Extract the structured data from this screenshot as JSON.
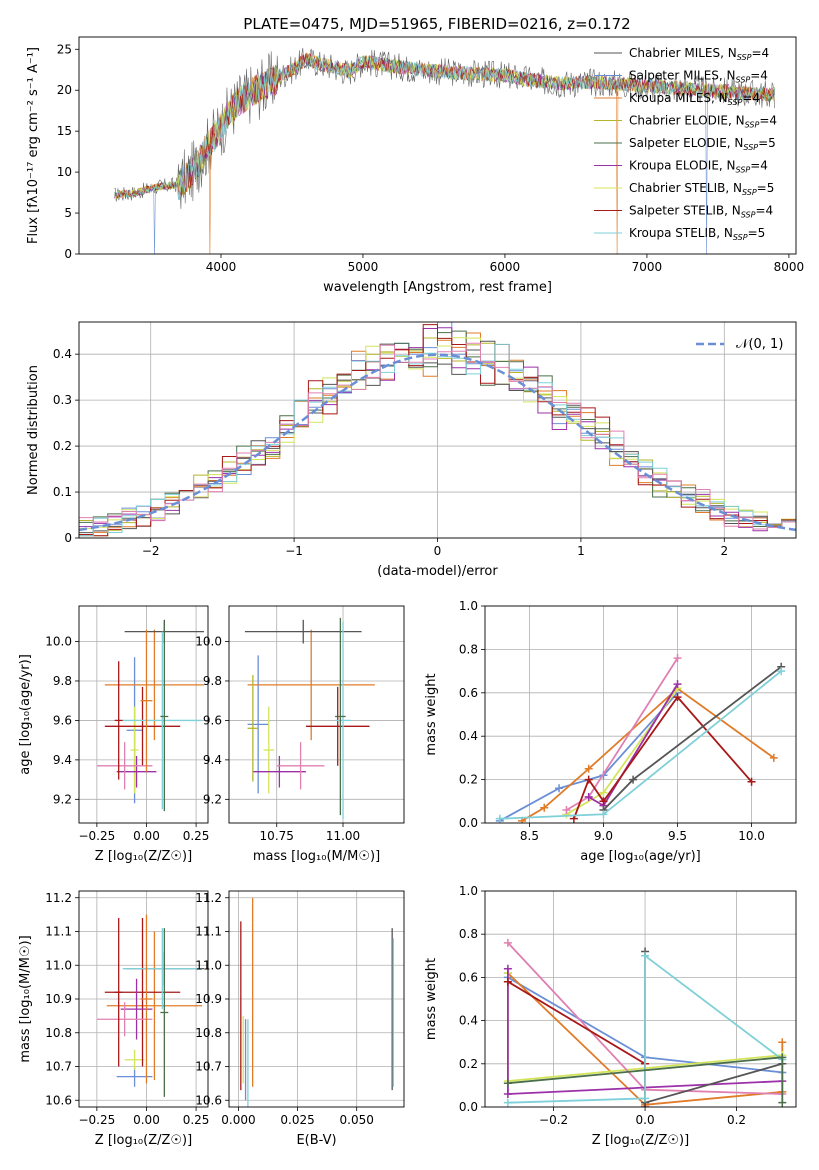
{
  "figure": {
    "title": "PLATE=0475, MJD=51965, FIBERID=0216, z=0.172"
  },
  "colors": [
    "#6a8fd6",
    "#e07b28",
    "#b5b52a",
    "#4a6f4a",
    "#9b30a8",
    "#d4e45a",
    "#555555",
    "#a81818",
    "#7fd0d8",
    "#e080b0"
  ],
  "chart_data": [
    {
      "id": "spectrum",
      "type": "line",
      "title": "PLATE=0475, MJD=51965, FIBERID=0216, z=0.172",
      "xlabel": "wavelength [Angstrom, rest frame]",
      "ylabel": "Flux [fλ10⁻¹⁷ erg cm⁻² s⁻¹ A⁻¹]",
      "xlim": [
        3000,
        8050
      ],
      "ylim": [
        0,
        26.5
      ],
      "xticks": [
        4000,
        5000,
        6000,
        7000,
        8000
      ],
      "yticks": [
        0,
        5,
        10,
        15,
        20,
        25
      ],
      "legend_position": "top-right",
      "grid": false,
      "x": [
        3250,
        3400,
        3550,
        3700,
        3800,
        3900,
        4000,
        4100,
        4200,
        4300,
        4400,
        4500,
        4600,
        4700,
        4800,
        4900,
        5000,
        5200,
        5400,
        5600,
        5800,
        6000,
        6200,
        6400,
        6600,
        6800,
        7000,
        7200,
        7400,
        7600,
        7800
      ],
      "y": [
        7.2,
        7.5,
        8.2,
        8.5,
        10,
        13,
        15.5,
        18.2,
        19.5,
        20.5,
        21.5,
        22.5,
        23.8,
        23.2,
        22.8,
        22.2,
        23.5,
        23,
        22.5,
        22.2,
        22,
        21.8,
        21.2,
        20.8,
        21,
        20.8,
        20.5,
        20.3,
        20,
        19.8,
        19.5
      ],
      "series": [
        {
          "name": "Chabrier MILES, N_SSP=4",
          "ssp": "4"
        },
        {
          "name": "Salpeter MILES, N_SSP=4",
          "ssp": "4"
        },
        {
          "name": "Kroupa MILES, N_SSP=4",
          "ssp": "4"
        },
        {
          "name": "Chabrier ELODIE, N_SSP=4",
          "ssp": "4"
        },
        {
          "name": "Salpeter ELODIE, N_SSP=5",
          "ssp": "5"
        },
        {
          "name": "Kroupa ELODIE, N_SSP=4",
          "ssp": "4"
        },
        {
          "name": "Chabrier STELIB, N_SSP=5",
          "ssp": "5"
        },
        {
          "name": "Salpeter STELIB, N_SSP=4",
          "ssp": "4"
        },
        {
          "name": "Kroupa STELIB, N_SSP=5",
          "ssp": "5"
        }
      ],
      "dips": [
        {
          "x": 3530,
          "series": 1
        },
        {
          "x": 3920,
          "series": 2
        },
        {
          "x": 6790,
          "series": 2
        },
        {
          "x": 7420,
          "series": 1
        }
      ]
    },
    {
      "id": "residuals",
      "type": "line",
      "xlabel": "(data-model)/error",
      "ylabel": "Normed distribution",
      "xlim": [
        -2.5,
        2.5
      ],
      "ylim": [
        0,
        0.47
      ],
      "xticks": [
        -2,
        -1,
        0,
        1,
        2
      ],
      "yticks": [
        0,
        0.1,
        0.2,
        0.3,
        0.4
      ],
      "grid": true,
      "legend_position": "top-right",
      "legend": "𝒩(0, 1)",
      "bin_width": 0.1
    },
    {
      "id": "age-vs-Z",
      "type": "scatter",
      "xlabel": "Z [log₁₀(Z/Z☉)]",
      "ylabel": "age  [log₁₀(age/yr)]",
      "xlim": [
        -0.34,
        0.31
      ],
      "ylim": [
        9.08,
        10.18
      ],
      "xticks": [
        -0.25,
        0.0,
        0.25
      ],
      "xticklabels": [
        "−0.25",
        "0.00",
        "0.25"
      ],
      "yticks": [
        9.2,
        9.4,
        9.6,
        9.8,
        10.0
      ],
      "yticklabels": [
        "9.2",
        "9.4",
        "9.6",
        "9.8",
        "10.0"
      ],
      "grid": true,
      "points": [
        {
          "x": -0.06,
          "y": 9.55,
          "xe": 0.04,
          "ye": 0.37,
          "c": 0
        },
        {
          "x": 0.04,
          "y": 9.78,
          "xe": 0.25,
          "ye": 0.28,
          "c": 1
        },
        {
          "x": -0.06,
          "y": 9.45,
          "xe": 0.02,
          "ye": 0.22,
          "c": 5
        },
        {
          "x": 0.09,
          "y": 10.05,
          "xe": 0.2,
          "ye": 0.06,
          "c": 6
        },
        {
          "x": -0.02,
          "y": 9.57,
          "xe": 0.19,
          "ye": 0.2,
          "c": 7
        },
        {
          "x": 0.08,
          "y": 9.6,
          "xe": 0.2,
          "ye": 0.45,
          "c": 8
        },
        {
          "x": -0.05,
          "y": 9.34,
          "xe": 0.1,
          "ye": 0.08,
          "c": 4
        },
        {
          "x": -0.11,
          "y": 9.37,
          "xe": 0.14,
          "ye": 0.12,
          "c": 9
        },
        {
          "x": -0.14,
          "y": 9.6,
          "xe": 0.02,
          "ye": 0.3,
          "c": 7
        },
        {
          "x": 0.0,
          "y": 9.7,
          "xe": 0.03,
          "ye": 0.36,
          "c": 1
        },
        {
          "x": 0.09,
          "y": 9.62,
          "xe": 0.02,
          "ye": 0.48,
          "c": 3
        }
      ]
    },
    {
      "id": "age-vs-mass",
      "type": "scatter",
      "xlabel": "mass [log₁₀(M/M☉)]",
      "xlim": [
        10.57,
        11.23
      ],
      "ylim": [
        9.08,
        10.18
      ],
      "xticks": [
        10.75,
        11.0
      ],
      "xticklabels": [
        "10.75",
        "11.00"
      ],
      "yticks": [
        9.2,
        9.4,
        9.6,
        9.8,
        10.0
      ],
      "yticklabels": [
        "9.2",
        "9.4",
        "9.6",
        "9.8",
        "10.0"
      ],
      "grid": true,
      "points": [
        {
          "x": 10.68,
          "y": 9.58,
          "xe": 0.04,
          "ye": 0.35,
          "c": 0
        },
        {
          "x": 10.88,
          "y": 9.78,
          "xe": 0.24,
          "ye": 0.28,
          "c": 1
        },
        {
          "x": 10.72,
          "y": 9.45,
          "xe": 0.02,
          "ye": 0.22,
          "c": 5
        },
        {
          "x": 10.85,
          "y": 10.05,
          "xe": 0.22,
          "ye": 0.06,
          "c": 6
        },
        {
          "x": 10.98,
          "y": 9.57,
          "xe": 0.12,
          "ye": 0.2,
          "c": 7
        },
        {
          "x": 11.0,
          "y": 9.6,
          "xe": 0.03,
          "ye": 0.5,
          "c": 8
        },
        {
          "x": 10.76,
          "y": 9.34,
          "xe": 0.1,
          "ye": 0.08,
          "c": 4
        },
        {
          "x": 10.84,
          "y": 9.37,
          "xe": 0.09,
          "ye": 0.12,
          "c": 9
        },
        {
          "x": 10.66,
          "y": 9.56,
          "xe": 0.02,
          "ye": 0.27,
          "c": 2
        },
        {
          "x": 10.99,
          "y": 9.62,
          "xe": 0.02,
          "ye": 0.5,
          "c": 3
        }
      ]
    },
    {
      "id": "weight-vs-age",
      "type": "line",
      "xlabel": "age  [log₁₀(age/yr)]",
      "ylabel": "mass weight",
      "xlim": [
        8.2,
        10.3
      ],
      "ylim": [
        0,
        1.0
      ],
      "xticks": [
        8.5,
        9.0,
        9.5,
        10.0
      ],
      "xticklabels": [
        "8.5",
        "9.0",
        "9.5",
        "10.0"
      ],
      "yticks": [
        0,
        0.2,
        0.4,
        0.6,
        0.8,
        1.0
      ],
      "yticklabels": [
        "0.0",
        "0.2",
        "0.4",
        "0.6",
        "0.8",
        "1.0"
      ],
      "grid": true,
      "series": [
        {
          "c": 0,
          "x": [
            8.3,
            8.7,
            9.0,
            9.5
          ],
          "y": [
            0.01,
            0.16,
            0.22,
            0.6
          ]
        },
        {
          "c": 1,
          "x": [
            8.45,
            8.6,
            8.9,
            9.5,
            10.15
          ],
          "y": [
            0.01,
            0.07,
            0.25,
            0.62,
            0.3
          ]
        },
        {
          "c": 5,
          "x": [
            8.75,
            9.0,
            9.5
          ],
          "y": [
            0.04,
            0.14,
            0.62
          ]
        },
        {
          "c": 9,
          "x": [
            8.75,
            8.9,
            9.5
          ],
          "y": [
            0.06,
            0.12,
            0.76
          ]
        },
        {
          "c": 4,
          "x": [
            8.9,
            9.0,
            9.5
          ],
          "y": [
            0.12,
            0.08,
            0.64
          ]
        },
        {
          "c": 7,
          "x": [
            8.8,
            8.9,
            9.0,
            9.5,
            10.0
          ],
          "y": [
            0.02,
            0.2,
            0.1,
            0.58,
            0.19
          ]
        },
        {
          "c": 6,
          "x": [
            9.0,
            9.2,
            10.2
          ],
          "y": [
            0.06,
            0.2,
            0.72
          ]
        },
        {
          "c": 8,
          "x": [
            8.3,
            9.0,
            10.2
          ],
          "y": [
            0.02,
            0.04,
            0.7
          ]
        }
      ]
    },
    {
      "id": "mass-vs-Z",
      "type": "scatter",
      "xlabel": "Z [log₁₀(Z/Z☉)]",
      "ylabel": "mass [log₁₀(M/M☉)]",
      "xlim": [
        -0.34,
        0.31
      ],
      "ylim": [
        10.58,
        11.22
      ],
      "xticks": [
        -0.25,
        0.0,
        0.25
      ],
      "xticklabels": [
        "−0.25",
        "0.00",
        "0.25"
      ],
      "yticks": [
        10.6,
        10.7,
        10.8,
        10.9,
        11.0,
        11.1,
        11.2
      ],
      "yticklabels": [
        "10.6",
        "10.7",
        "10.8",
        "10.9",
        "11.0",
        "11.1",
        "11.2"
      ],
      "grid": true,
      "points": [
        {
          "x": -0.06,
          "y": 10.67,
          "xe": 0.09,
          "ye": 0.03,
          "c": 0
        },
        {
          "x": 0.04,
          "y": 10.88,
          "xe": 0.24,
          "ye": 0.22,
          "c": 1
        },
        {
          "x": -0.06,
          "y": 10.72,
          "xe": 0.05,
          "ye": 0.03,
          "c": 5
        },
        {
          "x": 0.09,
          "y": 10.99,
          "xe": 0.2,
          "ye": 0.05,
          "c": 6
        },
        {
          "x": -0.02,
          "y": 10.92,
          "xe": 0.19,
          "ye": 0.22,
          "c": 7
        },
        {
          "x": 0.08,
          "y": 10.99,
          "xe": 0.2,
          "ye": 0.12,
          "c": 8
        },
        {
          "x": -0.05,
          "y": 10.87,
          "xe": 0.08,
          "ye": 0.09,
          "c": 4
        },
        {
          "x": -0.11,
          "y": 10.84,
          "xe": 0.14,
          "ye": 0.05,
          "c": 9
        },
        {
          "x": -0.14,
          "y": 10.92,
          "xe": 0.02,
          "ye": 0.22,
          "c": 7
        },
        {
          "x": 0.0,
          "y": 10.9,
          "xe": 0.03,
          "ye": 0.25,
          "c": 1
        },
        {
          "x": 0.09,
          "y": 10.86,
          "xe": 0.02,
          "ye": 0.25,
          "c": 3
        }
      ]
    },
    {
      "id": "mass-vs-ebv",
      "type": "scatter",
      "xlabel": "E(B-V)",
      "xlim": [
        -0.004,
        0.07
      ],
      "ylim": [
        10.58,
        11.22
      ],
      "xticks": [
        0.0,
        0.025,
        0.05
      ],
      "xticklabels": [
        "0.000",
        "0.025",
        "0.050"
      ],
      "yticks": [
        10.6,
        10.7,
        10.8,
        10.9,
        11.0,
        11.1,
        11.2
      ],
      "yticklabels": [
        "10.6",
        "10.7",
        "10.8",
        "10.9",
        "11.0",
        "11.1",
        "11.2"
      ],
      "grid": true,
      "points": [
        {
          "x": 0.001,
          "y": 10.88,
          "xe": 0,
          "ye": 0.25,
          "c": 7
        },
        {
          "x": 0.006,
          "y": 10.92,
          "xe": 0,
          "ye": 0.28,
          "c": 1
        },
        {
          "x": 0.003,
          "y": 10.72,
          "xe": 0,
          "ye": 0.12,
          "c": 0
        },
        {
          "x": 0.004,
          "y": 10.7,
          "xe": 0,
          "ye": 0.14,
          "c": 8
        },
        {
          "x": 0.002,
          "y": 10.75,
          "xe": 0,
          "ye": 0.1,
          "c": 5
        },
        {
          "x": 0.065,
          "y": 10.87,
          "xe": 0,
          "ye": 0.24,
          "c": 6
        },
        {
          "x": 0.0655,
          "y": 10.86,
          "xe": 0,
          "ye": 0.22,
          "c": 8
        }
      ]
    },
    {
      "id": "weight-vs-Z",
      "type": "line",
      "xlabel": "Z [log₁₀(Z/Z☉)]",
      "ylabel": "mass weight",
      "xlim": [
        -0.35,
        0.33
      ],
      "ylim": [
        0,
        1.0
      ],
      "xticks": [
        -0.2,
        0.0,
        0.2
      ],
      "xticklabels": [
        "−0.2",
        "0.0",
        "0.2"
      ],
      "yticks": [
        0,
        0.2,
        0.4,
        0.6,
        0.8,
        1.0
      ],
      "yticklabels": [
        "0.0",
        "0.2",
        "0.4",
        "0.6",
        "0.8",
        "1.0"
      ],
      "grid": true,
      "series": [
        {
          "c": 0,
          "x": [
            -0.3,
            0.0,
            0.3
          ],
          "y": [
            0.6,
            0.23,
            0.16
          ]
        },
        {
          "c": 1,
          "x": [
            -0.3,
            0.0,
            0.3,
            0.3
          ],
          "y": [
            0.62,
            0.01,
            0.07,
            0.3
          ]
        },
        {
          "c": 5,
          "x": [
            -0.3,
            -0.3,
            0.3
          ],
          "y": [
            0.62,
            0.12,
            0.24
          ]
        },
        {
          "c": 9,
          "x": [
            -0.3,
            0.0,
            0.3
          ],
          "y": [
            0.76,
            0.08,
            0.06
          ]
        },
        {
          "c": 4,
          "x": [
            -0.3,
            -0.3,
            0.3
          ],
          "y": [
            0.64,
            0.06,
            0.12
          ]
        },
        {
          "c": 7,
          "x": [
            -0.3,
            0.0,
            0.0
          ],
          "y": [
            0.58,
            0.2,
            0.0
          ]
        },
        {
          "c": 6,
          "x": [
            0.0,
            0.0,
            0.3
          ],
          "y": [
            0.72,
            0.02,
            0.2
          ]
        },
        {
          "c": 8,
          "x": [
            -0.3,
            0.0,
            0.0,
            0.3
          ],
          "y": [
            0.02,
            0.04,
            0.7,
            0.22
          ]
        },
        {
          "c": 3,
          "x": [
            -0.3,
            0.3,
            0.3
          ],
          "y": [
            0.11,
            0.23,
            0.02
          ]
        }
      ]
    }
  ]
}
